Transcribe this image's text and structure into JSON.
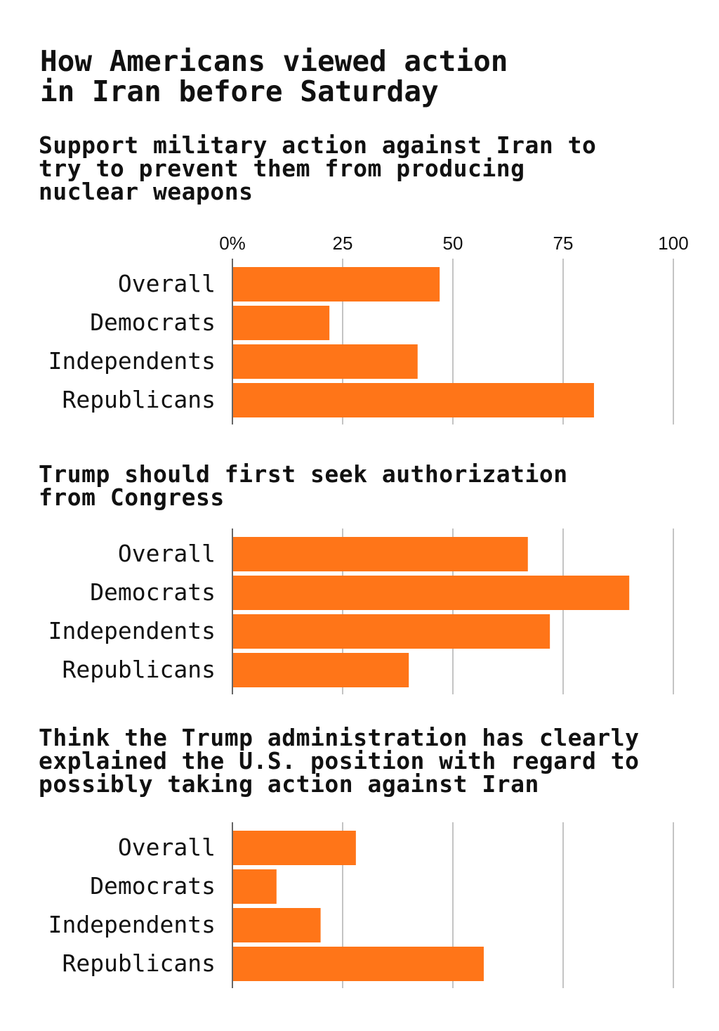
{
  "title": "How Americans viewed action\nin Iran before Saturday",
  "colors": {
    "bar": "#ff7518",
    "grid": "#c4c4c4",
    "axis": "#666666"
  },
  "chart_data": [
    {
      "type": "bar",
      "orientation": "horizontal",
      "title": "Support military action against Iran to\ntry to prevent them from producing\nnuclear weapons",
      "categories": [
        "Overall",
        "Democrats",
        "Independents",
        "Republicans"
      ],
      "values": [
        47,
        22,
        42,
        82
      ],
      "xlim": [
        0,
        100
      ],
      "ticks": [
        "0%",
        "25",
        "50",
        "75",
        "100"
      ],
      "grid": true
    },
    {
      "type": "bar",
      "orientation": "horizontal",
      "title": "Trump should first seek authorization\nfrom Congress",
      "categories": [
        "Overall",
        "Democrats",
        "Independents",
        "Republicans"
      ],
      "values": [
        67,
        90,
        72,
        40
      ],
      "xlim": [
        0,
        100
      ],
      "grid": true
    },
    {
      "type": "bar",
      "orientation": "horizontal",
      "title": "Think the Trump administration has clearly\nexplained the U.S. position with regard to\npossibly taking action against Iran",
      "categories": [
        "Overall",
        "Democrats",
        "Independents",
        "Republicans"
      ],
      "values": [
        28,
        10,
        20,
        57
      ],
      "xlim": [
        0,
        100
      ],
      "grid": true
    }
  ]
}
